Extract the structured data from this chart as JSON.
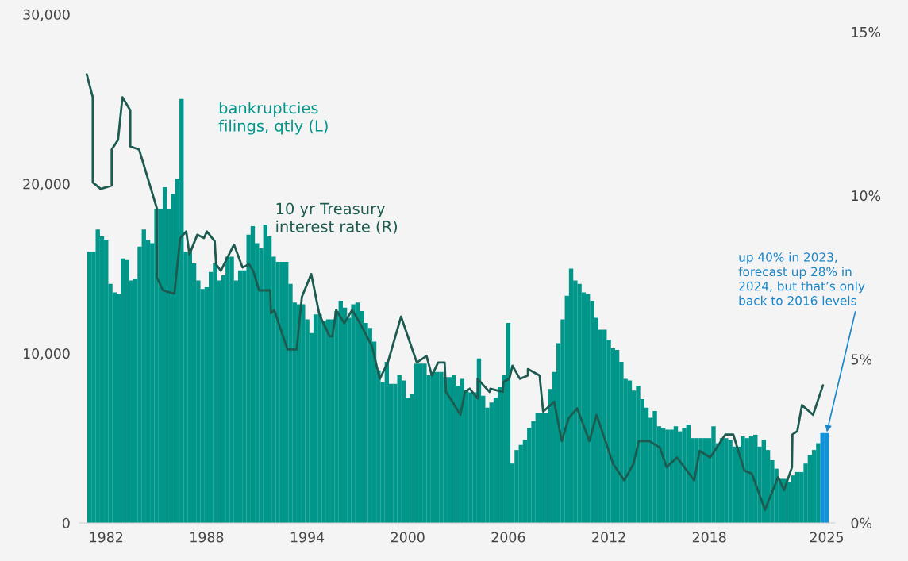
{
  "chart_data": {
    "type": "bar",
    "x": [
      1981.0,
      1981.25,
      1981.5,
      1981.75,
      1982.0,
      1982.25,
      1982.5,
      1982.75,
      1983.0,
      1983.25,
      1983.5,
      1983.75,
      1984.0,
      1984.25,
      1984.5,
      1984.75,
      1985.0,
      1985.25,
      1985.5,
      1985.75,
      1986.0,
      1986.25,
      1986.5,
      1986.75,
      1987.0,
      1987.25,
      1987.5,
      1987.75,
      1988.0,
      1988.25,
      1988.5,
      1988.75,
      1989.0,
      1989.25,
      1989.5,
      1989.75,
      1990.0,
      1990.25,
      1990.5,
      1990.75,
      1991.0,
      1991.25,
      1991.5,
      1991.75,
      1992.0,
      1992.25,
      1992.5,
      1992.75,
      1993.0,
      1993.25,
      1993.5,
      1993.75,
      1994.0,
      1994.25,
      1994.5,
      1994.75,
      1995.0,
      1995.25,
      1995.5,
      1995.75,
      1996.0,
      1996.25,
      1996.5,
      1996.75,
      1997.0,
      1997.25,
      1997.5,
      1997.75,
      1998.0,
      1998.25,
      1998.5,
      1998.75,
      1999.0,
      1999.25,
      1999.5,
      1999.75,
      2000.0,
      2000.25,
      2000.5,
      2000.75,
      2001.0,
      2001.25,
      2001.5,
      2001.75,
      2002.0,
      2002.25,
      2002.5,
      2002.75,
      2003.0,
      2003.25,
      2003.5,
      2003.75,
      2004.0,
      2004.25,
      2004.5,
      2004.75,
      2005.0,
      2005.25,
      2005.5,
      2005.75,
      2006.0,
      2006.25,
      2006.5,
      2006.75,
      2007.0,
      2007.25,
      2007.5,
      2007.75,
      2008.0,
      2008.25,
      2008.5,
      2008.75,
      2009.0,
      2009.25,
      2009.5,
      2009.75,
      2010.0,
      2010.25,
      2010.5,
      2010.75,
      2011.0,
      2011.25,
      2011.5,
      2011.75,
      2012.0,
      2012.25,
      2012.5,
      2012.75,
      2013.0,
      2013.25,
      2013.5,
      2013.75,
      2014.0,
      2014.25,
      2014.5,
      2014.75,
      2015.0,
      2015.25,
      2015.5,
      2015.75,
      2016.0,
      2016.25,
      2016.5,
      2016.75,
      2017.0,
      2017.25,
      2017.5,
      2017.75,
      2018.0,
      2018.25,
      2018.5,
      2018.75,
      2019.0,
      2019.25,
      2019.5,
      2019.75,
      2020.0,
      2020.25,
      2020.5,
      2020.75,
      2021.0,
      2021.25,
      2021.5,
      2021.75,
      2022.0,
      2022.25,
      2022.5,
      2022.75,
      2023.0,
      2023.25,
      2023.5,
      2023.75,
      2024.0,
      2024.25,
      2024.5
    ],
    "series": [
      {
        "name": "bankruptcies\nfilings, qtly (L)",
        "color": "#00968a",
        "values": [
          16000,
          16000,
          17300,
          16900,
          16700,
          14100,
          13600,
          13500,
          15600,
          15500,
          14300,
          14400,
          16300,
          17300,
          16700,
          16500,
          18500,
          18500,
          19800,
          18500,
          19400,
          20300,
          25000,
          16000,
          16000,
          15300,
          14300,
          13800,
          13900,
          14800,
          15300,
          14300,
          14600,
          15700,
          15700,
          14300,
          14900,
          14900,
          17000,
          17500,
          16500,
          16200,
          17600,
          16900,
          15700,
          15400,
          15400,
          15400,
          14100,
          13000,
          12900,
          12900,
          12000,
          11200,
          12300,
          12300,
          11900,
          12000,
          12000,
          12500,
          13100,
          12700,
          12100,
          12900,
          13000,
          12500,
          11800,
          11500,
          10700,
          9000,
          8300,
          9500,
          8200,
          8200,
          8700,
          8400,
          7400,
          7600,
          9400,
          9400,
          9400,
          8700,
          8900,
          8900,
          8900,
          8600,
          8600,
          8700,
          8100,
          8500,
          7800,
          7700,
          7700,
          9700,
          7500,
          6800,
          7100,
          7400,
          8000,
          8700,
          11800,
          3500,
          4300,
          4600,
          4900,
          5600,
          6000,
          6500,
          6500,
          6500,
          7900,
          8900,
          10600,
          12000,
          13400,
          15000,
          14300,
          14100,
          13600,
          13500,
          13100,
          12100,
          11400,
          11400,
          10800,
          10300,
          10200,
          9500,
          8500,
          8400,
          7800,
          8100,
          7300,
          6800,
          6200,
          6600,
          5700,
          5600,
          5500,
          5500,
          5700,
          5400,
          5600,
          5800,
          5000,
          5000,
          5000,
          5000,
          5000,
          5700,
          4700,
          5000,
          5000,
          4900,
          4500,
          4500,
          5100,
          5000,
          5100,
          5200,
          4500,
          4900,
          4300,
          3700,
          3200,
          2600,
          2600,
          2400,
          2800,
          3000,
          3000,
          3500,
          4000,
          4300,
          4700
        ]
      },
      {
        "color": "#1192d6",
        "x": [
          2024.75,
          2025.0
        ],
        "values": [
          5300,
          5300
        ]
      },
      {
        "name": "10 yr Treasury\ninterest rate (R)",
        "type": "line",
        "axis": "y2",
        "color": "#1d5b50",
        "x": [
          1980.84,
          1981.2,
          1981.2,
          1981.67,
          1982.33,
          1982.33,
          1982.71,
          1982.97,
          1983.44,
          1983.44,
          1983.97,
          1985.03,
          1985.03,
          1985.39,
          1986.07,
          1986.42,
          1986.78,
          1986.97,
          1987.44,
          1987.84,
          1988.01,
          1988.48,
          1988.56,
          1988.84,
          1989.63,
          1990.14,
          1990.53,
          1990.77,
          1991.13,
          1991.79,
          1991.84,
          1992.03,
          1992.82,
          1993.37,
          1993.68,
          1994.24,
          1994.71,
          1994.87,
          1995.34,
          1995.5,
          1995.73,
          1996.21,
          1996.68,
          1997.15,
          1997.86,
          1998.33,
          1998.81,
          1999.6,
          2000.54,
          2001.12,
          2001.44,
          2001.81,
          2002.2,
          2002.28,
          2002.67,
          2003.14,
          2003.41,
          2003.7,
          2004.17,
          2004.17,
          2004.88,
          2004.93,
          2005.67,
          2005.71,
          2006.06,
          2006.25,
          2006.69,
          2007.17,
          2007.17,
          2007.87,
          2008.08,
          2008.74,
          2009.19,
          2009.61,
          2010.11,
          2010.84,
          2011.27,
          2012.26,
          2012.92,
          2013.47,
          2013.79,
          2014.42,
          2015.05,
          2015.45,
          2016.07,
          2017.1,
          2017.42,
          2018.05,
          2018.96,
          2019.43,
          2020.09,
          2020.54,
          2021.32,
          2022.11,
          2022.46,
          2022.93,
          2022.96,
          2023.25,
          2023.53,
          2024.19,
          2024.78
        ],
        "values": [
          13.7,
          13.0,
          10.4,
          10.2,
          10.3,
          11.4,
          11.7,
          13.0,
          12.6,
          11.5,
          11.4,
          9.6,
          7.5,
          7.1,
          7.0,
          8.7,
          8.9,
          8.2,
          8.8,
          8.7,
          8.9,
          8.6,
          7.9,
          7.7,
          8.5,
          7.8,
          7.9,
          7.7,
          7.1,
          7.1,
          6.4,
          6.5,
          5.3,
          5.3,
          6.9,
          7.6,
          6.4,
          6.2,
          5.7,
          5.7,
          6.5,
          6.1,
          6.5,
          6.1,
          5.4,
          4.4,
          4.9,
          6.3,
          4.9,
          5.1,
          4.5,
          4.9,
          4.9,
          4.0,
          3.7,
          3.3,
          4.0,
          4.1,
          3.8,
          4.4,
          4.0,
          4.1,
          4.0,
          4.3,
          4.4,
          4.8,
          4.4,
          4.5,
          4.7,
          4.5,
          3.4,
          3.7,
          2.5,
          3.2,
          3.5,
          2.5,
          3.3,
          1.8,
          1.3,
          1.8,
          2.5,
          2.5,
          2.3,
          1.7,
          2.0,
          1.3,
          2.2,
          2.0,
          2.7,
          2.7,
          1.6,
          1.5,
          0.4,
          1.4,
          1.0,
          1.7,
          2.7,
          2.8,
          3.6,
          3.3,
          4.2
        ]
      }
    ],
    "xlim": [
      1980.4,
      2025.5
    ],
    "xticks": [
      1982,
      1988,
      1994,
      2000,
      2006,
      2012,
      2018,
      2025
    ],
    "ylim": [
      0,
      30000
    ],
    "yticks": [
      {
        "value": 0,
        "label": "0"
      },
      {
        "value": 10000,
        "label": "10,000"
      },
      {
        "value": 20000,
        "label": "20,000"
      },
      {
        "value": 30000,
        "label": "30,000"
      }
    ],
    "y2lim": [
      0,
      15
    ],
    "y2ticks": [
      {
        "value": 0,
        "label": "0%"
      },
      {
        "value": 5,
        "label": "5%"
      },
      {
        "value": 10,
        "label": "10%"
      },
      {
        "value": 15,
        "label": "15%"
      }
    ],
    "annotations": [
      {
        "text": "up 40% in 2023,\nforecast up 28% in\n2024, but that’s only\nback to 2016 levels",
        "x": 2025.0,
        "y": 5300
      }
    ]
  }
}
